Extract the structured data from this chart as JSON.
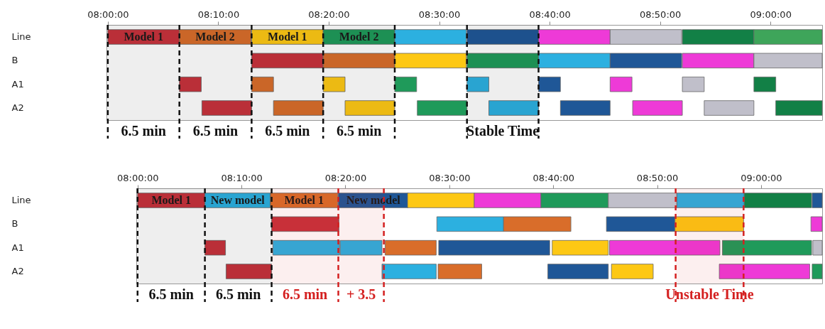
{
  "chart_data": [
    {
      "type": "bar",
      "orientation": "horizontal",
      "categories": [
        "Line",
        "B",
        "A1",
        "A2"
      ],
      "xlim": [
        7.998,
        9.078
      ],
      "xticks": [
        {
          "value": 8,
          "label": "08:00:00"
        },
        {
          "value": 8.1667,
          "label": "08:10:00"
        },
        {
          "value": 8.3333,
          "label": "08:20:00"
        },
        {
          "value": 8.5,
          "label": "08:30:00"
        },
        {
          "value": 8.6667,
          "label": "08:40:00"
        },
        {
          "value": 8.8333,
          "label": "08:50:00"
        },
        {
          "value": 9,
          "label": "09:00:00"
        }
      ],
      "series": [
        {
          "color": "#c8323c",
          "values": [
            0.108,
            0.108,
            0.033,
            0.075
          ],
          "base": [
            8.0,
            8.217,
            8.108,
            8.142
          ],
          "value_labels": [
            "Model 1",
            null,
            null,
            null
          ]
        },
        {
          "color": "#d96d2a",
          "values": [
            0.108,
            0.108,
            0.033,
            0.075
          ],
          "base": [
            8.108,
            8.325,
            8.217,
            8.25
          ],
          "value_labels": [
            "Model 2",
            null,
            null,
            null
          ]
        },
        {
          "color": "#fdc814",
          "values": [
            0.108,
            0.108,
            0.033,
            0.075
          ],
          "base": [
            8.217,
            8.433,
            8.325,
            8.358
          ],
          "value_labels": [
            "Model 1",
            null,
            null,
            null
          ]
        },
        {
          "color": "#1f9a5a",
          "values": [
            0.108,
            0.108,
            0.033,
            0.075
          ],
          "base": [
            8.325,
            8.542,
            8.433,
            8.467
          ],
          "value_labels": [
            "Model 2",
            null,
            null,
            null
          ]
        },
        {
          "color": "#2cb0e0",
          "values": [
            0.108,
            0.108,
            0.033,
            0.075
          ],
          "base": [
            8.433,
            8.65,
            8.542,
            8.575
          ]
        },
        {
          "color": "#1f5797",
          "values": [
            0.108,
            0.108,
            0.033,
            0.075
          ],
          "base": [
            8.542,
            8.758,
            8.65,
            8.683
          ]
        },
        {
          "color": "#ee3ad7",
          "values": [
            0.108,
            0.108,
            0.033,
            0.075
          ],
          "base": [
            8.65,
            8.867,
            8.758,
            8.792
          ]
        },
        {
          "color": "#c0bfca",
          "values": [
            0.108,
            0.103,
            0.033,
            0.075
          ],
          "base": [
            8.758,
            8.975,
            8.867,
            8.9
          ]
        },
        {
          "color": "#128046",
          "values": [
            0.108,
            null,
            0.033,
            0.07
          ],
          "base": [
            8.867,
            null,
            8.975,
            9.008
          ]
        },
        {
          "color": "#3ea55a",
          "values": [
            0.103,
            null,
            null,
            null
          ],
          "base": [
            8.975,
            null,
            null,
            null
          ]
        }
      ],
      "bands": [
        {
          "axis": "x",
          "from": 8.0,
          "to": 8.108,
          "label": "6.5 min",
          "color": "#111111"
        },
        {
          "axis": "x",
          "from": 8.108,
          "to": 8.217,
          "label": "6.5 min",
          "color": "#111111"
        },
        {
          "axis": "x",
          "from": 8.217,
          "to": 8.325,
          "label": "6.5 min",
          "color": "#111111"
        },
        {
          "axis": "x",
          "from": 8.325,
          "to": 8.433,
          "label": "6.5 min",
          "color": "#111111"
        },
        {
          "axis": "x",
          "from": 8.542,
          "to": 8.65,
          "label": "Stable Time",
          "color": "#111111"
        }
      ],
      "ref_lines": [
        {
          "axis": "x",
          "value": 8.0,
          "color": "#111111",
          "line_style": "dashed"
        },
        {
          "axis": "x",
          "value": 8.108,
          "color": "#111111",
          "line_style": "dashed"
        },
        {
          "axis": "x",
          "value": 8.217,
          "color": "#111111",
          "line_style": "dashed"
        },
        {
          "axis": "x",
          "value": 8.325,
          "color": "#111111",
          "line_style": "dashed"
        },
        {
          "axis": "x",
          "value": 8.433,
          "color": "#111111",
          "line_style": "dashed"
        },
        {
          "axis": "x",
          "value": 8.542,
          "color": "#111111",
          "line_style": "dashed"
        },
        {
          "axis": "x",
          "value": 8.65,
          "color": "#111111",
          "line_style": "dashed"
        }
      ]
    },
    {
      "type": "bar",
      "orientation": "horizontal",
      "categories": [
        "Line",
        "B",
        "A1",
        "A2"
      ],
      "xlim": [
        7.998,
        9.098
      ],
      "xticks": [
        {
          "value": 8,
          "label": "08:00:00"
        },
        {
          "value": 8.1667,
          "label": "08:10:00"
        },
        {
          "value": 8.3333,
          "label": "08:20:00"
        },
        {
          "value": 8.5,
          "label": "08:30:00"
        },
        {
          "value": 8.6667,
          "label": "08:40:00"
        },
        {
          "value": 8.8333,
          "label": "08:50:00"
        },
        {
          "value": 9,
          "label": "09:00:00"
        }
      ],
      "series": [
        {
          "color": "#c8323c",
          "values": [
            0.108,
            0.108,
            0.033,
            0.073
          ],
          "base": [
            8.0,
            8.215,
            8.108,
            8.142
          ],
          "value_labels": [
            "Model 1",
            null,
            null,
            null
          ]
        },
        {
          "color": "#2cb0e0",
          "values": [
            0.105,
            0.107,
            0.107,
            0.087
          ],
          "base": [
            8.108,
            8.48,
            8.217,
            8.392
          ],
          "value_labels": [
            "New model",
            null,
            null,
            null
          ]
        },
        {
          "color": "#2cb0e0",
          "values": [
            null,
            null,
            0.067,
            null
          ],
          "base": [
            null,
            null,
            8.325,
            null
          ]
        },
        {
          "color": "#d96d2a",
          "values": [
            0.108,
            0.108,
            0.082,
            0.07
          ],
          "base": [
            8.213,
            8.587,
            8.397,
            8.482
          ],
          "value_labels": [
            "Model 1",
            null,
            null,
            null
          ]
        },
        {
          "color": "#1f5797",
          "values": [
            0.112,
            0.11,
            0.178,
            0.097
          ],
          "base": [
            8.322,
            8.752,
            8.483,
            8.658
          ],
          "value_labels": [
            "New model",
            null,
            null,
            null
          ]
        },
        {
          "color": "#fdc814",
          "values": [
            0.107,
            0.11,
            0.09,
            0.067
          ],
          "base": [
            8.433,
            8.862,
            8.665,
            8.76
          ]
        },
        {
          "color": "#ee3ad7",
          "values": [
            0.107,
            0.018,
            0.177,
            0.145
          ],
          "base": [
            8.54,
            9.08,
            8.757,
            8.933
          ]
        },
        {
          "color": "#1f9a5a",
          "values": [
            0.108,
            null,
            0.143,
            0.016
          ],
          "base": [
            8.647,
            null,
            8.938,
            9.082
          ]
        },
        {
          "color": "#c0bfca",
          "values": [
            0.11,
            null,
            0.015,
            null
          ],
          "base": [
            8.755,
            null,
            9.083,
            null
          ]
        },
        {
          "color": "#2cb0e0",
          "values": [
            0.108,
            null,
            null,
            null
          ],
          "base": [
            8.865,
            null,
            null,
            null
          ]
        },
        {
          "color": "#128046",
          "values": [
            0.108,
            null,
            null,
            null
          ],
          "base": [
            8.973,
            null,
            null,
            null
          ]
        },
        {
          "color": "#1f5797",
          "values": [
            0.016,
            null,
            null,
            null
          ],
          "base": [
            9.082,
            null,
            null,
            null
          ]
        }
      ],
      "bands": [
        {
          "axis": "x",
          "from": 8.0,
          "to": 8.108,
          "label": "6.5 min",
          "color": "#111111"
        },
        {
          "axis": "x",
          "from": 8.108,
          "to": 8.215,
          "label": "6.5 min",
          "color": "#111111"
        },
        {
          "axis": "x",
          "from": 8.215,
          "to": 8.322,
          "label": "6.5 min",
          "color": "#d42020"
        },
        {
          "axis": "x",
          "from": 8.322,
          "to": 8.395,
          "label": "+ 3.5",
          "color": "#d42020"
        },
        {
          "axis": "x",
          "from": 8.863,
          "to": 8.972,
          "label": "Unstable Time",
          "color": "#d42020"
        }
      ],
      "ref_lines": [
        {
          "axis": "x",
          "value": 8.0,
          "color": "#111111",
          "line_style": "dashed"
        },
        {
          "axis": "x",
          "value": 8.108,
          "color": "#111111",
          "line_style": "dashed"
        },
        {
          "axis": "x",
          "value": 8.215,
          "color": "#111111",
          "line_style": "dashed"
        },
        {
          "axis": "x",
          "value": 8.322,
          "color": "#d42020",
          "line_style": "dashed"
        },
        {
          "axis": "x",
          "value": 8.395,
          "color": "#d42020",
          "line_style": "dashed"
        },
        {
          "axis": "x",
          "value": 8.863,
          "color": "#d42020",
          "line_style": "dashed"
        },
        {
          "axis": "x",
          "value": 8.972,
          "color": "#d42020",
          "line_style": "dashed"
        }
      ]
    }
  ]
}
